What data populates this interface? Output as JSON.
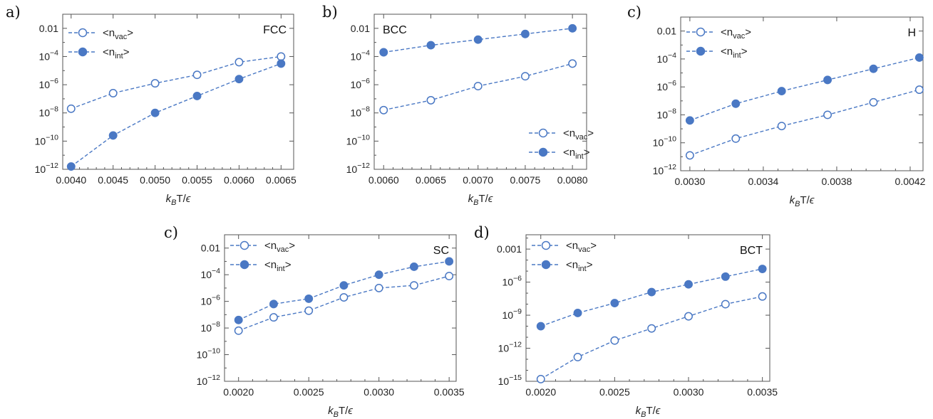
{
  "chart_data": [
    {
      "panel_label": "a)",
      "type": "line",
      "title": "FCC",
      "xlabel": "k_BT/ϵ",
      "ylabel": "",
      "y_scale": "log",
      "xlim": [
        0.0039,
        0.00665
      ],
      "ylim_exp": [
        -12,
        -1
      ],
      "x_ticks": [
        "0.0040",
        "0.0045",
        "0.0050",
        "0.0055",
        "0.0060",
        "0.0065"
      ],
      "y_ticks": [
        {
          "exp": -2,
          "label": "0.01"
        },
        {
          "exp": -4,
          "label": "10"
        },
        {
          "exp": -6,
          "label": "10"
        },
        {
          "exp": -8,
          "label": "10"
        },
        {
          "exp": -10,
          "label": "10"
        },
        {
          "exp": -12,
          "label": "10"
        }
      ],
      "legend_position": "top-left",
      "x": [
        0.004,
        0.0045,
        0.005,
        0.0055,
        0.006,
        0.0065
      ],
      "series": [
        {
          "name": "<n_vac>",
          "marker": "open",
          "log10_values": [
            -7.7,
            -6.6,
            -5.9,
            -5.3,
            -4.4,
            -4.0
          ]
        },
        {
          "name": "<n_int>",
          "marker": "filled",
          "log10_values": [
            -11.8,
            -9.6,
            -8.0,
            -6.8,
            -5.6,
            -4.5
          ]
        }
      ]
    },
    {
      "panel_label": "b)",
      "type": "line",
      "title": "BCC",
      "xlabel": "k_BT/ϵ",
      "ylabel": "",
      "y_scale": "log",
      "xlim": [
        0.0059,
        0.00815
      ],
      "ylim_exp": [
        -12,
        -1
      ],
      "x_ticks": [
        "0.0060",
        "0.0065",
        "0.0070",
        "0.0075",
        "0.0080"
      ],
      "y_ticks": [
        {
          "exp": -2,
          "label": "0.01"
        },
        {
          "exp": -4,
          "label": "10"
        },
        {
          "exp": -6,
          "label": "10"
        },
        {
          "exp": -8,
          "label": "10"
        },
        {
          "exp": -10,
          "label": "10"
        },
        {
          "exp": -12,
          "label": "10"
        }
      ],
      "legend_position": "bottom-right",
      "x": [
        0.006,
        0.0065,
        0.007,
        0.0075,
        0.008
      ],
      "series": [
        {
          "name": "<n_vac>",
          "marker": "open",
          "log10_values": [
            -7.8,
            -7.1,
            -6.1,
            -5.4,
            -4.5
          ]
        },
        {
          "name": "<n_int>",
          "marker": "filled",
          "log10_values": [
            -3.7,
            -3.2,
            -2.8,
            -2.4,
            -2.0
          ]
        }
      ]
    },
    {
      "panel_label": "c)",
      "type": "line",
      "title": "H",
      "xlabel": "k_BT/ϵ",
      "ylabel": "",
      "y_scale": "log",
      "xlim": [
        0.00295,
        0.00427
      ],
      "ylim_exp": [
        -12,
        -1
      ],
      "x_ticks": [
        "0.0030",
        "0.0034",
        "0.0038",
        "0.0042"
      ],
      "x_tick_values": [
        0.003,
        0.0034,
        0.0038,
        0.0042
      ],
      "y_ticks": [
        {
          "exp": -2,
          "label": "0.01"
        },
        {
          "exp": -4,
          "label": "10"
        },
        {
          "exp": -6,
          "label": "10"
        },
        {
          "exp": -8,
          "label": "10"
        },
        {
          "exp": -10,
          "label": "10"
        },
        {
          "exp": -12,
          "label": "10"
        }
      ],
      "legend_position": "top-left",
      "x": [
        0.003,
        0.00325,
        0.0035,
        0.00375,
        0.004,
        0.00425
      ],
      "series": [
        {
          "name": "<n_vac>",
          "marker": "open",
          "log10_values": [
            -10.9,
            -9.7,
            -8.8,
            -8.0,
            -7.1,
            -6.2
          ]
        },
        {
          "name": "<n_int>",
          "marker": "filled",
          "log10_values": [
            -8.4,
            -7.2,
            -6.3,
            -5.5,
            -4.7,
            -3.9
          ]
        }
      ]
    },
    {
      "panel_label": "c)",
      "type": "line",
      "title": "SC",
      "xlabel": "k_BT/ϵ",
      "ylabel": "",
      "y_scale": "log",
      "xlim": [
        0.0019,
        0.00355
      ],
      "ylim_exp": [
        -12,
        -1
      ],
      "x_ticks": [
        "0.0020",
        "0.0025",
        "0.0030",
        "0.0035"
      ],
      "x_tick_values": [
        0.002,
        0.0025,
        0.003,
        0.0035
      ],
      "y_ticks": [
        {
          "exp": -2,
          "label": "0.01"
        },
        {
          "exp": -4,
          "label": "10"
        },
        {
          "exp": -6,
          "label": "10"
        },
        {
          "exp": -8,
          "label": "10"
        },
        {
          "exp": -10,
          "label": "10"
        },
        {
          "exp": -12,
          "label": "10"
        }
      ],
      "legend_position": "top-left",
      "x": [
        0.002,
        0.00225,
        0.0025,
        0.00275,
        0.003,
        0.00325,
        0.0035
      ],
      "series": [
        {
          "name": "<n_vac>",
          "marker": "open",
          "log10_values": [
            -8.2,
            -7.2,
            -6.7,
            -5.7,
            -5.0,
            -4.8,
            -4.1
          ]
        },
        {
          "name": "<n_int>",
          "marker": "filled",
          "log10_values": [
            -7.4,
            -6.2,
            -5.8,
            -4.8,
            -4.0,
            -3.4,
            -3.0
          ]
        }
      ]
    },
    {
      "panel_label": "d)",
      "type": "line",
      "title": "BCT",
      "xlabel": "k_BT/ϵ",
      "ylabel": "",
      "y_scale": "log",
      "xlim": [
        0.0019,
        0.00355
      ],
      "ylim_exp": [
        -15,
        -1.7
      ],
      "x_ticks": [
        "0.0020",
        "0.0025",
        "0.0030",
        "0.0035"
      ],
      "x_tick_values": [
        0.002,
        0.0025,
        0.003,
        0.0035
      ],
      "y_ticks": [
        {
          "exp": -3,
          "label": "0.001"
        },
        {
          "exp": -6,
          "label": "10"
        },
        {
          "exp": -9,
          "label": "10"
        },
        {
          "exp": -12,
          "label": "10"
        },
        {
          "exp": -15,
          "label": "10"
        }
      ],
      "legend_position": "top-left",
      "x": [
        0.002,
        0.00225,
        0.0025,
        0.00275,
        0.003,
        0.00325,
        0.0035
      ],
      "series": [
        {
          "name": "<n_vac>",
          "marker": "open",
          "log10_values": [
            -14.8,
            -12.8,
            -11.3,
            -10.2,
            -9.1,
            -8.0,
            -7.3
          ]
        },
        {
          "name": "<n_int>",
          "marker": "filled",
          "log10_values": [
            -10.0,
            -8.8,
            -7.9,
            -6.9,
            -6.2,
            -5.5,
            -4.8
          ]
        }
      ]
    }
  ],
  "style": {
    "series_color": "#4a78c4",
    "axis_color": "#555555"
  }
}
